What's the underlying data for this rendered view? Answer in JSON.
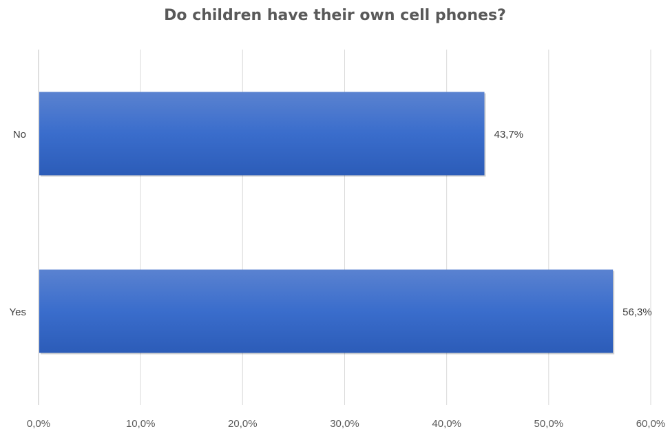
{
  "chart_data": {
    "type": "bar",
    "orientation": "horizontal",
    "title": "Do children have their own cell phones?",
    "xlabel": "",
    "ylabel": "",
    "categories": [
      "No",
      "Yes"
    ],
    "values": [
      43.7,
      56.3
    ],
    "data_labels": [
      "43,7%",
      "56,3%"
    ],
    "xlim": [
      0,
      60
    ],
    "x_ticks": [
      0,
      10,
      20,
      30,
      40,
      50,
      60
    ],
    "x_tick_labels": [
      "0,0%",
      "10,0%",
      "20,0%",
      "30,0%",
      "40,0%",
      "50,0%",
      "60,0%"
    ],
    "grid": true,
    "legend": "none",
    "bar_color": "#4472C4"
  }
}
